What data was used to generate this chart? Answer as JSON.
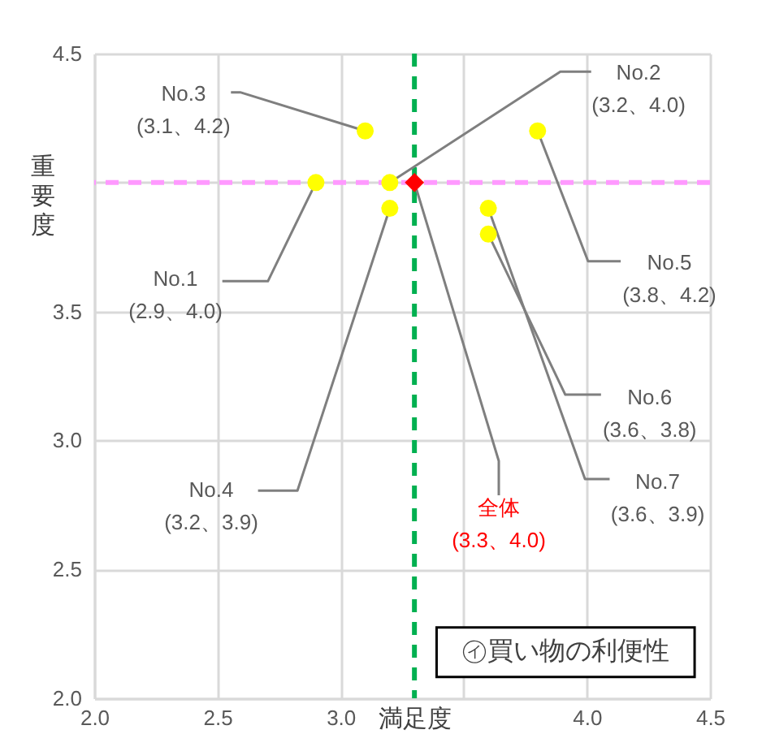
{
  "chart_data": {
    "type": "scatter",
    "xlabel": "満足度",
    "ylabel": "重要度",
    "xlim": [
      2.0,
      4.5
    ],
    "ylim": [
      2.0,
      4.5
    ],
    "xticks": [
      {
        "value": 2.0,
        "label": "2.0"
      },
      {
        "value": 2.5,
        "label": "2.5"
      },
      {
        "value": 3.0,
        "label": "3.0"
      },
      {
        "value": 3.5,
        "label": null
      },
      {
        "value": 4.0,
        "label": "4.0"
      },
      {
        "value": 4.5,
        "label": "4.5"
      }
    ],
    "yticks": [
      {
        "value": 2.0,
        "label": "2.0"
      },
      {
        "value": 2.5,
        "label": "2.5"
      },
      {
        "value": 3.0,
        "label": "3.0"
      },
      {
        "value": 3.5,
        "label": "3.5"
      },
      {
        "value": 4.0,
        "label": null
      },
      {
        "value": 4.5,
        "label": "4.5"
      }
    ],
    "grid": true,
    "series": [
      {
        "color": "#ffff00",
        "marker": "circle",
        "x": [
          2.9,
          3.2,
          3.1,
          3.2,
          3.8,
          3.6,
          3.6
        ],
        "values": [
          4.0,
          4.0,
          4.2,
          3.9,
          4.2,
          3.8,
          3.9
        ]
      },
      {
        "color": "#ff0000",
        "marker": "diamond",
        "x": [
          3.3
        ],
        "values": [
          4.0
        ]
      }
    ],
    "ref_lines": [
      {
        "axis": "x",
        "value": 3.3,
        "color": "#00b050",
        "line_style": "dashed"
      },
      {
        "axis": "y",
        "value": 4.0,
        "color": "#ff99ff",
        "line_style": "dashed"
      }
    ],
    "annotations": [
      {
        "text": "No.1\n(2.9、4.0)",
        "x": 2.9,
        "y": 4.0
      },
      {
        "text": "No.2\n(3.2、4.0)",
        "x": 3.2,
        "y": 4.0
      },
      {
        "text": "No.3\n(3.1、4.2)",
        "x": 3.1,
        "y": 4.2
      },
      {
        "text": "No.4\n(3.2、3.9)",
        "x": 3.2,
        "y": 3.9
      },
      {
        "text": "No.5\n(3.8、4.2)",
        "x": 3.8,
        "y": 4.2
      },
      {
        "text": "No.6\n(3.6、3.8)",
        "x": 3.6,
        "y": 3.8
      },
      {
        "text": "No.7\n(3.6、3.9)",
        "x": 3.6,
        "y": 3.9
      },
      {
        "text": "全体\n(3.3、4.0)",
        "x": 3.3,
        "y": 4.0
      },
      "㋑買い物の利便性"
    ]
  }
}
